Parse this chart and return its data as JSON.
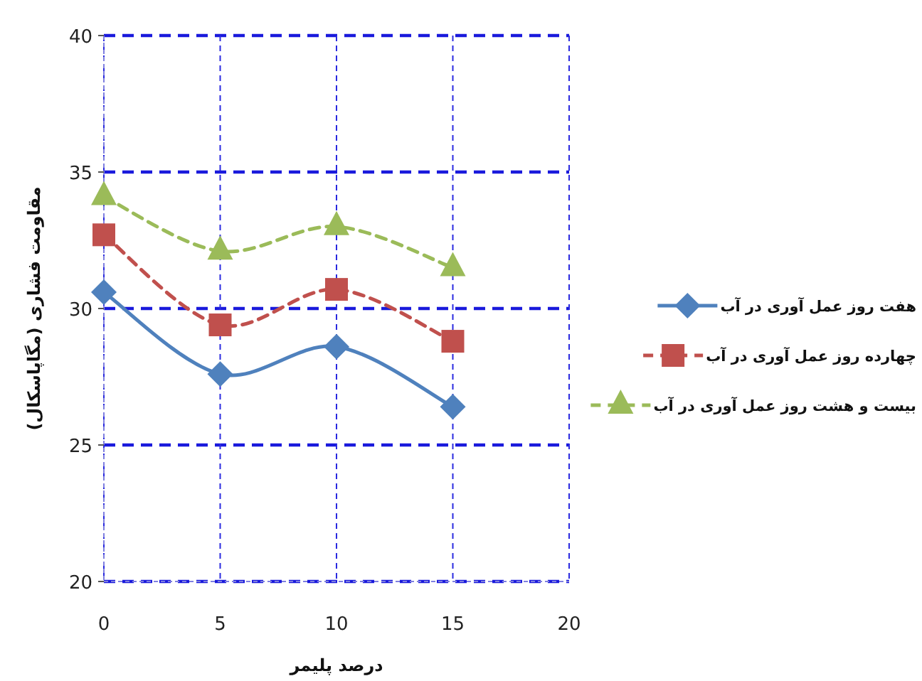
{
  "chart_data": {
    "type": "line",
    "xlabel": "درصد پلیمر",
    "ylabel": "مقاومت فشاری (مگاپاسکال)",
    "x": [
      0,
      5,
      10,
      15
    ],
    "xlim": [
      0,
      20
    ],
    "xticks": [
      0,
      5,
      10,
      15,
      20
    ],
    "ylim": [
      20,
      40
    ],
    "yticks": [
      20,
      25,
      30,
      35,
      40
    ],
    "grid": true,
    "legend": "right",
    "series": [
      {
        "name": "هفت روز عمل آوری در آب",
        "color": "#4f81bd",
        "marker": "diamond",
        "line_style": "solid",
        "values": [
          30.6,
          27.6,
          28.6,
          26.4
        ]
      },
      {
        "name": "چهارده روز عمل آوری در آب",
        "color": "#c0504d",
        "marker": "square",
        "line_style": "dashed",
        "values": [
          32.7,
          29.4,
          30.7,
          28.8
        ]
      },
      {
        "name": "بیست و هشت روز عمل آوری در آب",
        "color": "#9bbb59",
        "marker": "triangle",
        "line_style": "dashed",
        "values": [
          34.1,
          32.1,
          33.0,
          31.5
        ]
      }
    ]
  }
}
